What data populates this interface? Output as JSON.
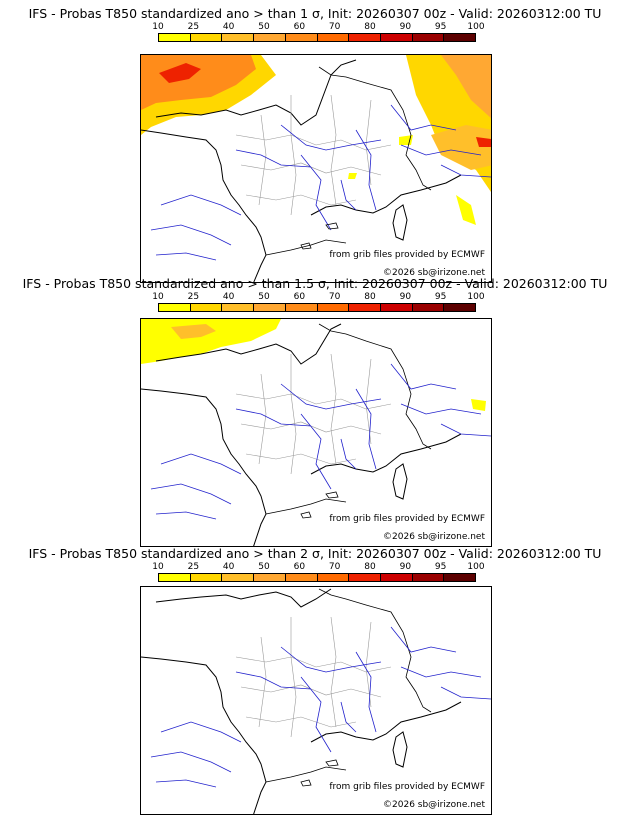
{
  "scale": {
    "ticks": [
      "10",
      "25",
      "40",
      "50",
      "60",
      "70",
      "80",
      "90",
      "95",
      "100"
    ],
    "colors": [
      "#ffff00",
      "#ffd700",
      "#ffbf2a",
      "#ffa833",
      "#ff8c1a",
      "#ff6a00",
      "#ee2200",
      "#cc0000",
      "#990000",
      "#5c0000"
    ]
  },
  "colors": {
    "coast": "#000000",
    "rivers": "#2222cc",
    "borders": "#999999"
  },
  "panels": [
    {
      "title": "IFS - Probas T850  standardized ano > than 1 σ, Init: 20260307 00z - Valid: 20260312:00 TU",
      "credit_source": "from grib files provided by ECMWF",
      "credit_copyright": "©2026 sb@irizone.net"
    },
    {
      "title": "IFS - Probas T850  standardized ano > than 1.5 σ, Init: 20260307 00z - Valid: 20260312:00 TU",
      "credit_source": "from grib files provided by ECMWF",
      "credit_copyright": "©2026 sb@irizone.net"
    },
    {
      "title": "IFS - Probas T850  standardized ano > than 2 σ, Init: 20260307 00z - Valid: 20260312:00 TU",
      "credit_source": "from grib files provided by ECMWF",
      "credit_copyright": "©2026 sb@irizone.net"
    }
  ]
}
